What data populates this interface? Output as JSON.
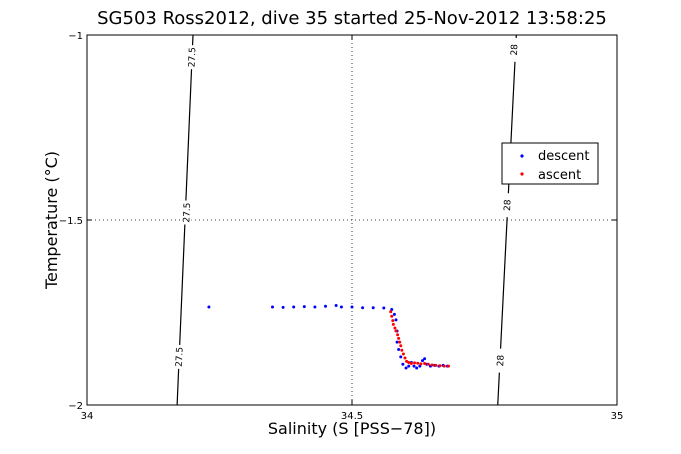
{
  "chart_data": {
    "type": "scatter",
    "title": "SG503 Ross2012, dive 35 started 25-Nov-2012 13:58:25",
    "xlabel": "Salinity (S [PSS−78])",
    "ylabel": "Temperature (°C)",
    "xlim": [
      34,
      35
    ],
    "ylim": [
      -2,
      -1
    ],
    "xticks": [
      34,
      34.5,
      35
    ],
    "xtick_labels": [
      "34",
      "34.5",
      "35"
    ],
    "yticks": [
      -2,
      -1.5,
      -1
    ],
    "ytick_labels": [
      "−2",
      "−1.5",
      "−1"
    ],
    "grid": "dotted at ticks",
    "legend_position": "right",
    "contours": [
      {
        "label": "27.5",
        "color": "#000000",
        "points": [
          [
            34.17,
            -2.0
          ],
          [
            34.2,
            -1.0
          ]
        ],
        "label_positions": [
          [
            34.198,
            -1.06
          ],
          [
            34.188,
            -1.48
          ],
          [
            34.174,
            -1.87
          ]
        ]
      },
      {
        "label": "28",
        "color": "#000000",
        "points": [
          [
            34.775,
            -2.0
          ],
          [
            34.81,
            -1.0
          ]
        ],
        "label_positions": [
          [
            34.806,
            -1.04
          ],
          [
            34.793,
            -1.46
          ],
          [
            34.78,
            -1.88
          ]
        ]
      }
    ],
    "series": [
      {
        "name": "descent",
        "color": "#0000ff",
        "points": [
          [
            34.23,
            -1.735
          ],
          [
            34.35,
            -1.735
          ],
          [
            34.37,
            -1.736
          ],
          [
            34.39,
            -1.735
          ],
          [
            34.41,
            -1.734
          ],
          [
            34.43,
            -1.735
          ],
          [
            34.45,
            -1.733
          ],
          [
            34.47,
            -1.731
          ],
          [
            34.48,
            -1.735
          ],
          [
            34.5,
            -1.735
          ],
          [
            34.52,
            -1.737
          ],
          [
            34.54,
            -1.737
          ],
          [
            34.56,
            -1.738
          ],
          [
            34.575,
            -1.742
          ],
          [
            34.58,
            -1.755
          ],
          [
            34.583,
            -1.77
          ],
          [
            34.585,
            -1.8
          ],
          [
            34.585,
            -1.83
          ],
          [
            34.588,
            -1.85
          ],
          [
            34.592,
            -1.87
          ],
          [
            34.596,
            -1.89
          ],
          [
            34.602,
            -1.9
          ],
          [
            34.607,
            -1.895
          ],
          [
            34.612,
            -1.885
          ],
          [
            34.617,
            -1.895
          ],
          [
            34.622,
            -1.9
          ],
          [
            34.628,
            -1.895
          ],
          [
            34.633,
            -1.88
          ],
          [
            34.637,
            -1.875
          ],
          [
            34.641,
            -1.89
          ],
          [
            34.648,
            -1.895
          ],
          [
            34.656,
            -1.893
          ],
          [
            34.664,
            -1.895
          ],
          [
            34.672,
            -1.893
          ],
          [
            34.68,
            -1.895
          ]
        ]
      },
      {
        "name": "ascent",
        "color": "#ff0000",
        "points": [
          [
            34.573,
            -1.748
          ],
          [
            34.575,
            -1.76
          ],
          [
            34.577,
            -1.772
          ],
          [
            34.578,
            -1.782
          ],
          [
            34.581,
            -1.792
          ],
          [
            34.583,
            -1.8
          ],
          [
            34.586,
            -1.81
          ],
          [
            34.588,
            -1.82
          ],
          [
            34.59,
            -1.83
          ],
          [
            34.592,
            -1.84
          ],
          [
            34.594,
            -1.852
          ],
          [
            34.597,
            -1.862
          ],
          [
            34.6,
            -1.873
          ],
          [
            34.603,
            -1.882
          ],
          [
            34.607,
            -1.885
          ],
          [
            34.612,
            -1.888
          ],
          [
            34.618,
            -1.886
          ],
          [
            34.624,
            -1.887
          ],
          [
            34.63,
            -1.889
          ],
          [
            34.637,
            -1.888
          ],
          [
            34.644,
            -1.89
          ],
          [
            34.651,
            -1.892
          ],
          [
            34.658,
            -1.893
          ],
          [
            34.666,
            -1.894
          ],
          [
            34.674,
            -1.895
          ],
          [
            34.682,
            -1.895
          ]
        ]
      }
    ]
  }
}
